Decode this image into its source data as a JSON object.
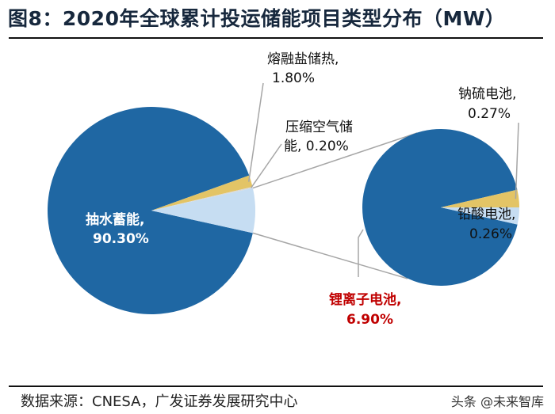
{
  "title": "图8：2020年全球累计投运储能项目类型分布（MW）",
  "source": "数据来源：CNESA，广发证券发展研究中心",
  "watermark": "头条 @未来智库",
  "chart_data": {
    "type": "pie",
    "subtype": "pie-of-pie",
    "title": "图8：2020年全球累计投运储能项目类型分布（MW）",
    "main_pie": [
      {
        "name": "抽水蓄能",
        "value": 90.3,
        "label": "抽水蓄能,",
        "pct": "90.30%",
        "color": "#1f67a3"
      },
      {
        "name": "熔融盐储热",
        "value": 1.8,
        "label": "熔融盐储热,",
        "pct": "1.80%",
        "color": "#e3c466"
      },
      {
        "name": "压缩空气储能",
        "value": 0.2,
        "label": "压缩空气储",
        "label2": "能, 0.20%",
        "color": "#d9d9d9"
      },
      {
        "name": "锂离子电池",
        "value": 6.9,
        "label": "锂离子电池,",
        "pct": "6.90%",
        "color": "#c6ddf2",
        "label_color": "#c00000"
      }
    ],
    "secondary_pie": [
      {
        "name": "锂离子电池",
        "value": 6.9,
        "color": "#1f67a3"
      },
      {
        "name": "钠硫电池",
        "value": 0.27,
        "label": "钠硫电池,",
        "pct": "0.27%",
        "color": "#e3c466"
      },
      {
        "name": "铅酸电池",
        "value": 0.26,
        "label": "铅酸电池,",
        "pct": "0.26%",
        "color": "#c6ddf2"
      }
    ]
  }
}
